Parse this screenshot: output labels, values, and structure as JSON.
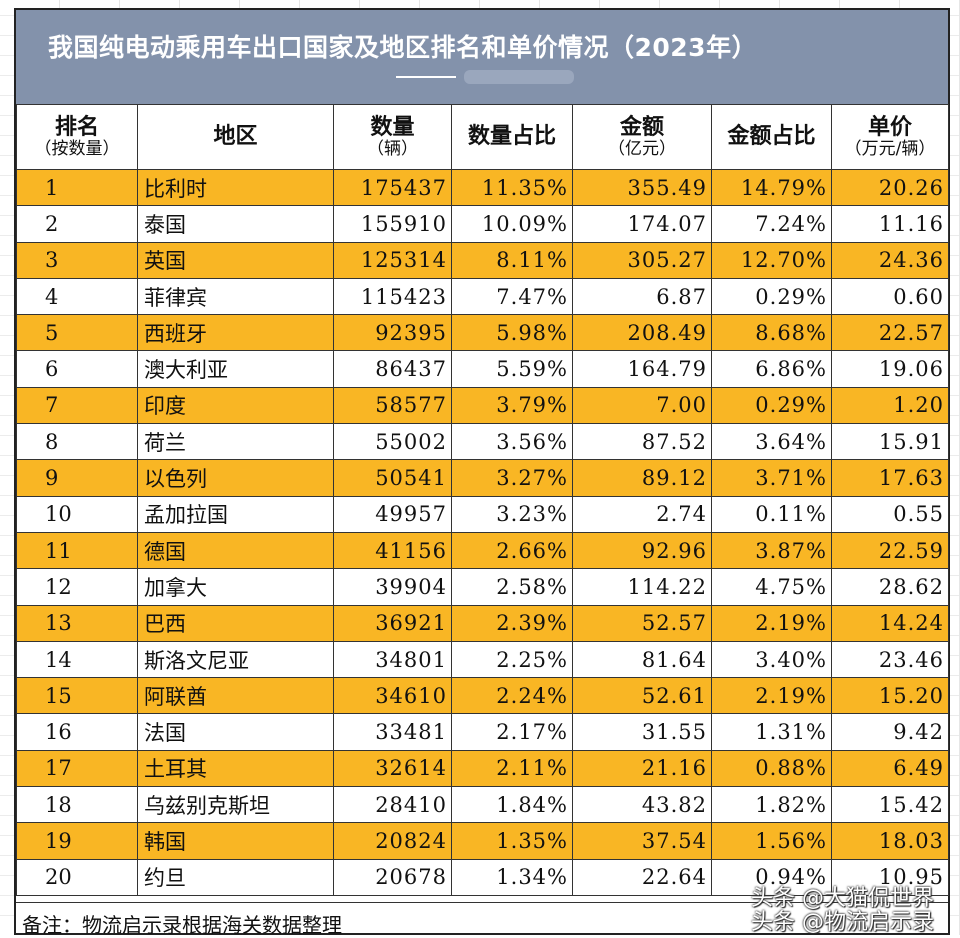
{
  "title": "我国纯电动乘用车出口国家及地区排名和单价情况（2023年）",
  "title_dash": "——",
  "headers": [
    {
      "main": "排名",
      "sub": "（按数量）"
    },
    {
      "main": "地区",
      "sub": ""
    },
    {
      "main": "数量",
      "sub": "（辆）"
    },
    {
      "main": "数量占比",
      "sub": ""
    },
    {
      "main": "金额",
      "sub": "（亿元）"
    },
    {
      "main": "金额占比",
      "sub": ""
    },
    {
      "main": "单价",
      "sub": "（万元/辆）"
    }
  ],
  "rows": [
    {
      "rank": "1",
      "region": "比利时",
      "qty": "175437",
      "qty_pct": "11.35%",
      "amount": "355.49",
      "amount_pct": "14.79%",
      "unit_price": "20.26"
    },
    {
      "rank": "2",
      "region": "泰国",
      "qty": "155910",
      "qty_pct": "10.09%",
      "amount": "174.07",
      "amount_pct": "7.24%",
      "unit_price": "11.16"
    },
    {
      "rank": "3",
      "region": "英国",
      "qty": "125314",
      "qty_pct": "8.11%",
      "amount": "305.27",
      "amount_pct": "12.70%",
      "unit_price": "24.36"
    },
    {
      "rank": "4",
      "region": "菲律宾",
      "qty": "115423",
      "qty_pct": "7.47%",
      "amount": "6.87",
      "amount_pct": "0.29%",
      "unit_price": "0.60"
    },
    {
      "rank": "5",
      "region": "西班牙",
      "qty": "92395",
      "qty_pct": "5.98%",
      "amount": "208.49",
      "amount_pct": "8.68%",
      "unit_price": "22.57"
    },
    {
      "rank": "6",
      "region": "澳大利亚",
      "qty": "86437",
      "qty_pct": "5.59%",
      "amount": "164.79",
      "amount_pct": "6.86%",
      "unit_price": "19.06"
    },
    {
      "rank": "7",
      "region": "印度",
      "qty": "58577",
      "qty_pct": "3.79%",
      "amount": "7.00",
      "amount_pct": "0.29%",
      "unit_price": "1.20"
    },
    {
      "rank": "8",
      "region": "荷兰",
      "qty": "55002",
      "qty_pct": "3.56%",
      "amount": "87.52",
      "amount_pct": "3.64%",
      "unit_price": "15.91"
    },
    {
      "rank": "9",
      "region": "以色列",
      "qty": "50541",
      "qty_pct": "3.27%",
      "amount": "89.12",
      "amount_pct": "3.71%",
      "unit_price": "17.63"
    },
    {
      "rank": "10",
      "region": "孟加拉国",
      "qty": "49957",
      "qty_pct": "3.23%",
      "amount": "2.74",
      "amount_pct": "0.11%",
      "unit_price": "0.55"
    },
    {
      "rank": "11",
      "region": "德国",
      "qty": "41156",
      "qty_pct": "2.66%",
      "amount": "92.96",
      "amount_pct": "3.87%",
      "unit_price": "22.59"
    },
    {
      "rank": "12",
      "region": "加拿大",
      "qty": "39904",
      "qty_pct": "2.58%",
      "amount": "114.22",
      "amount_pct": "4.75%",
      "unit_price": "28.62"
    },
    {
      "rank": "13",
      "region": "巴西",
      "qty": "36921",
      "qty_pct": "2.39%",
      "amount": "52.57",
      "amount_pct": "2.19%",
      "unit_price": "14.24"
    },
    {
      "rank": "14",
      "region": "斯洛文尼亚",
      "qty": "34801",
      "qty_pct": "2.25%",
      "amount": "81.64",
      "amount_pct": "3.40%",
      "unit_price": "23.46"
    },
    {
      "rank": "15",
      "region": "阿联酋",
      "qty": "34610",
      "qty_pct": "2.24%",
      "amount": "52.61",
      "amount_pct": "2.19%",
      "unit_price": "15.20"
    },
    {
      "rank": "16",
      "region": "法国",
      "qty": "33481",
      "qty_pct": "2.17%",
      "amount": "31.55",
      "amount_pct": "1.31%",
      "unit_price": "9.42"
    },
    {
      "rank": "17",
      "region": "土耳其",
      "qty": "32614",
      "qty_pct": "2.11%",
      "amount": "21.16",
      "amount_pct": "0.88%",
      "unit_price": "6.49"
    },
    {
      "rank": "18",
      "region": "乌兹别克斯坦",
      "qty": "28410",
      "qty_pct": "1.84%",
      "amount": "43.82",
      "amount_pct": "1.82%",
      "unit_price": "15.42"
    },
    {
      "rank": "19",
      "region": "韩国",
      "qty": "20824",
      "qty_pct": "1.35%",
      "amount": "37.54",
      "amount_pct": "1.56%",
      "unit_price": "18.03"
    },
    {
      "rank": "20",
      "region": "约旦",
      "qty": "20678",
      "qty_pct": "1.34%",
      "amount": "22.64",
      "amount_pct": "0.94%",
      "unit_price": "10.95"
    }
  ],
  "note": "备注：物流启示录根据海关数据整理",
  "watermark": [
    "头条 @大猫侃世界",
    "头条 @物流启示录"
  ],
  "colors": {
    "title_bg": "#8392ab",
    "highlight_row": "#f9b624",
    "border": "#333333"
  }
}
